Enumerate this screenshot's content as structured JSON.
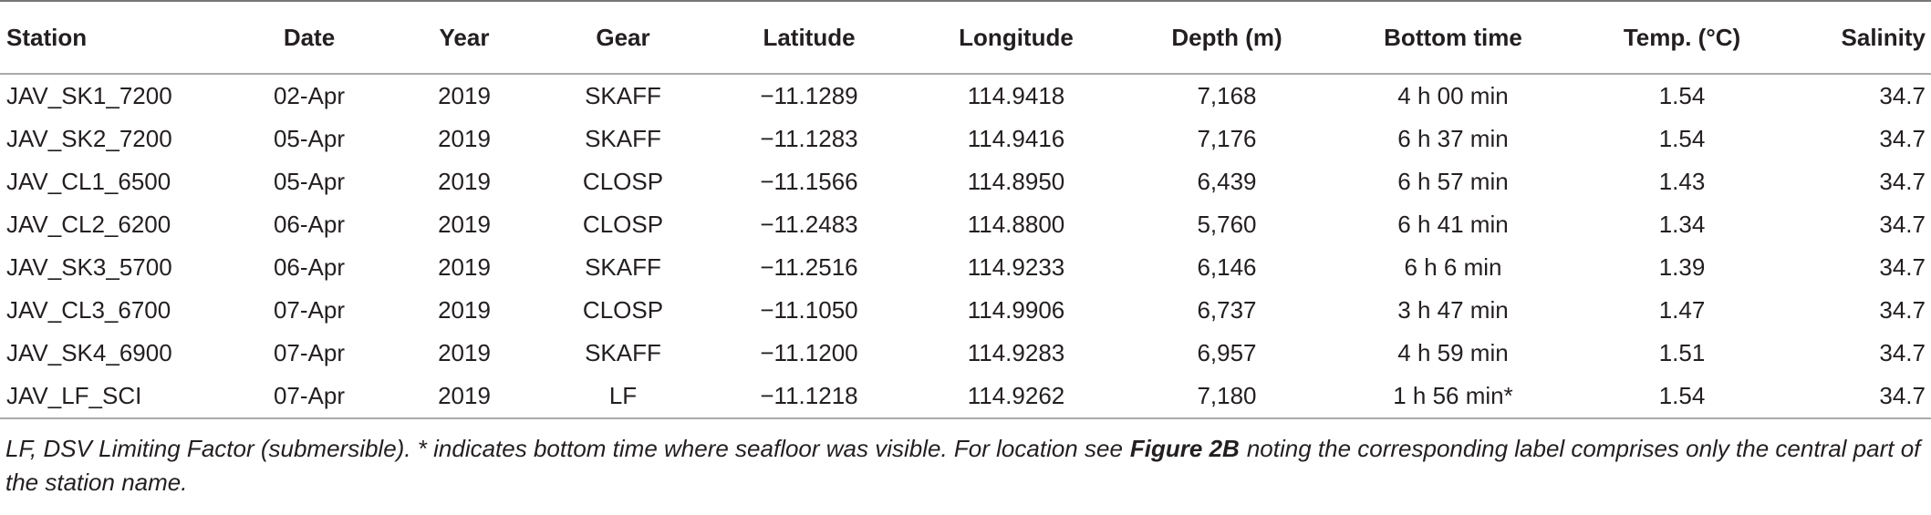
{
  "table": {
    "header": [
      "Station",
      "Date",
      "Year",
      "Gear",
      "Latitude",
      "Longitude",
      "Depth (m)",
      "Bottom time",
      "Temp. (°C)",
      "Salinity"
    ],
    "rows": [
      [
        "JAV_SK1_7200",
        "02-Apr",
        "2019",
        "SKAFF",
        "−11.1289",
        "114.9418",
        "7,168",
        "4 h 00 min",
        "1.54",
        "34.7"
      ],
      [
        "JAV_SK2_7200",
        "05-Apr",
        "2019",
        "SKAFF",
        "−11.1283",
        "114.9416",
        "7,176",
        "6 h 37 min",
        "1.54",
        "34.7"
      ],
      [
        "JAV_CL1_6500",
        "05-Apr",
        "2019",
        "CLOSP",
        "−11.1566",
        "114.8950",
        "6,439",
        "6 h 57 min",
        "1.43",
        "34.7"
      ],
      [
        "JAV_CL2_6200",
        "06-Apr",
        "2019",
        "CLOSP",
        "−11.2483",
        "114.8800",
        "5,760",
        "6 h 41 min",
        "1.34",
        "34.7"
      ],
      [
        "JAV_SK3_5700",
        "06-Apr",
        "2019",
        "SKAFF",
        "−11.2516",
        "114.9233",
        "6,146",
        "6 h 6 min",
        "1.39",
        "34.7"
      ],
      [
        "JAV_CL3_6700",
        "07-Apr",
        "2019",
        "CLOSP",
        "−11.1050",
        "114.9906",
        "6,737",
        "3 h 47 min",
        "1.47",
        "34.7"
      ],
      [
        "JAV_SK4_6900",
        "07-Apr",
        "2019",
        "SKAFF",
        "−11.1200",
        "114.9283",
        "6,957",
        "4 h 59 min",
        "1.51",
        "34.7"
      ],
      [
        "JAV_LF_SCI",
        "07-Apr",
        "2019",
        "LF",
        "−11.1218",
        "114.9262",
        "7,180",
        "1 h 56 min*",
        "1.54",
        "34.7"
      ]
    ]
  },
  "footnote": [
    "LF, DSV Limiting Factor (submersible). * indicates bottom time where seafloor was visible. For location see",
    "Figure 2B",
    "noting the corresponding label comprises only the central part of the station name."
  ]
}
